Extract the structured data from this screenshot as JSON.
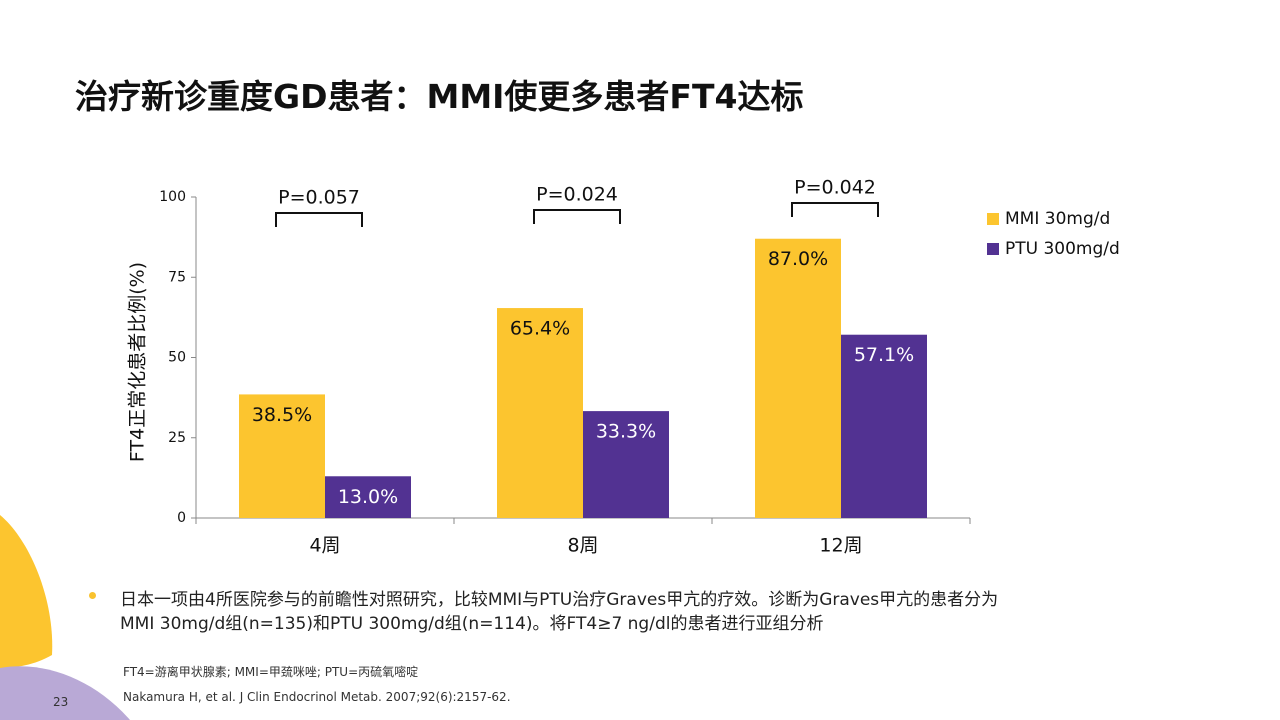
{
  "title": "治疗新诊重度GD患者：MMI使更多患者FT4达标",
  "chart_data": {
    "type": "bar",
    "y_label": "FT4正常化患者比例(%)",
    "categories": [
      "4周",
      "8周",
      "12周"
    ],
    "series": [
      {
        "name": "MMI 30mg/d",
        "color": "#fcc52f",
        "values": [
          38.5,
          65.4,
          87.0
        ],
        "value_labels": [
          "38.5%",
          "65.4%",
          "87.0%"
        ]
      },
      {
        "name": "PTU 300mg/d",
        "color": "#523292",
        "values": [
          13.0,
          33.3,
          57.1
        ],
        "value_labels": [
          "13.0%",
          "33.3%",
          "57.1%"
        ]
      }
    ],
    "annotations": [
      "P=0.057",
      "P=0.024",
      "P=0.042"
    ],
    "ylim": [
      0,
      100
    ],
    "yticks": [
      0,
      25,
      50,
      75,
      100
    ],
    "grid": false,
    "legend": "right"
  },
  "bullet": [
    "日本一项由4所医院参与的前瞻性对照研究，比较MMI与PTU治疗Graves甲亢的疗效。诊断为Graves甲亢的患者分为",
    "MMI 30mg/d组(n=135)和PTU 300mg/d组(n=114)。将FT4≥7 ng/dl的患者进行亚组分析"
  ],
  "footnotes": [
    "FT4=游离甲状腺素; MMI=甲巯咪唑; PTU=丙硫氧嘧啶",
    "Nakamura H, et al. J Clin Endocrinol Metab. 2007;92(6):2157-62."
  ],
  "page_number": "23"
}
